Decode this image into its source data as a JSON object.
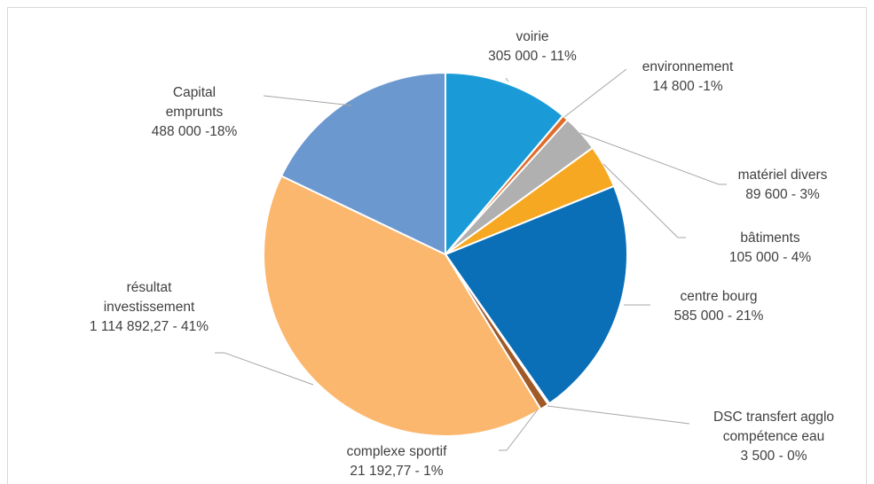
{
  "chart_data": {
    "type": "pie",
    "title": "",
    "start_angle_deg": 0,
    "direction": "clockwise",
    "slices": [
      {
        "name": "voirie",
        "label_lines": [
          "voirie",
          "305 000 - 11%"
        ],
        "value": 305000,
        "percent": "11%",
        "color": "#1a9bd7"
      },
      {
        "name": "environnement",
        "label_lines": [
          "environnement",
          "14 800  -1%"
        ],
        "value": 14800,
        "percent": "1%",
        "color": "#e06c2c"
      },
      {
        "name": "matériel divers",
        "label_lines": [
          "matériel divers",
          "89 600  - 3%"
        ],
        "value": 89600,
        "percent": "3%",
        "color": "#b0b0b0"
      },
      {
        "name": "bâtiments",
        "label_lines": [
          "bâtiments",
          "105 000  - 4%"
        ],
        "value": 105000,
        "percent": "4%",
        "color": "#f7a823"
      },
      {
        "name": "centre bourg",
        "label_lines": [
          "centre bourg",
          "585 000  - 21%"
        ],
        "value": 585000,
        "percent": "21%",
        "color": "#0a6fb7"
      },
      {
        "name": "DSC transfert agglo compétence eau",
        "label_lines": [
          "DSC transfert agglo",
          "compétence eau",
          "3 500  - 0%"
        ],
        "value": 3500,
        "percent": "0%",
        "color": "#1f4e79"
      },
      {
        "name": "complexe sportif",
        "label_lines": [
          "complexe sportif",
          "21 192,77  - 1%"
        ],
        "value": 21192.77,
        "percent": "1%",
        "color": "#a05a28"
      },
      {
        "name": "résultat investissement",
        "label_lines": [
          "résultat",
          "investissement",
          "1 114 892,27 - 41%"
        ],
        "value": 1114892.27,
        "percent": "41%",
        "color": "#fbb76e"
      },
      {
        "name": "Capital emprunts",
        "label_lines": [
          "Capital",
          "emprunts",
          "488 000  -18%"
        ],
        "value": 488000,
        "percent": "18%",
        "color": "#6c98d0"
      }
    ]
  }
}
